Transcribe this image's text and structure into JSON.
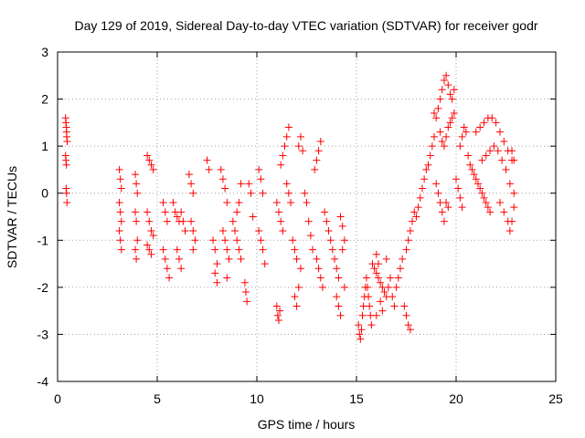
{
  "chart_data": {
    "type": "scatter",
    "title": "Day 129 of 2019, Sidereal Day-to-day VTEC variation (SDTVAR) for receiver godr",
    "xlabel": "GPS time / hours",
    "ylabel": "SDTVAR / TECUs",
    "xlim": [
      0,
      25
    ],
    "ylim": [
      -4,
      3
    ],
    "xticks": [
      0,
      5,
      10,
      15,
      20,
      25
    ],
    "yticks": [
      -4,
      -3,
      -2,
      -1,
      0,
      1,
      2,
      3
    ],
    "grid": true,
    "marker": "+",
    "color": "#ff0000",
    "series": [
      {
        "name": "SDTVAR",
        "points": [
          [
            0.4,
            1.6
          ],
          [
            0.42,
            1.5
          ],
          [
            0.44,
            1.4
          ],
          [
            0.45,
            1.3
          ],
          [
            0.46,
            1.2
          ],
          [
            0.48,
            1.1
          ],
          [
            0.4,
            0.8
          ],
          [
            0.42,
            0.7
          ],
          [
            0.44,
            0.6
          ],
          [
            0.43,
            0.1
          ],
          [
            0.45,
            0.0
          ],
          [
            0.47,
            -0.2
          ],
          [
            3.1,
            0.5
          ],
          [
            3.15,
            0.3
          ],
          [
            3.2,
            0.1
          ],
          [
            3.1,
            -0.2
          ],
          [
            3.15,
            -0.4
          ],
          [
            3.2,
            -0.6
          ],
          [
            3.1,
            -0.8
          ],
          [
            3.15,
            -1.0
          ],
          [
            3.2,
            -1.2
          ],
          [
            3.9,
            0.4
          ],
          [
            3.95,
            0.2
          ],
          [
            4.0,
            0.0
          ],
          [
            3.9,
            -0.4
          ],
          [
            3.95,
            -0.6
          ],
          [
            4.0,
            -1.0
          ],
          [
            3.9,
            -1.2
          ],
          [
            3.95,
            -1.4
          ],
          [
            4.5,
            0.8
          ],
          [
            4.6,
            0.7
          ],
          [
            4.7,
            0.6
          ],
          [
            4.8,
            0.5
          ],
          [
            4.5,
            -0.4
          ],
          [
            4.6,
            -0.6
          ],
          [
            4.7,
            -0.8
          ],
          [
            4.5,
            -1.1
          ],
          [
            4.6,
            -1.2
          ],
          [
            4.7,
            -1.3
          ],
          [
            4.8,
            -0.9
          ],
          [
            5.3,
            -0.2
          ],
          [
            5.4,
            -0.4
          ],
          [
            5.5,
            -0.6
          ],
          [
            5.3,
            -1.2
          ],
          [
            5.4,
            -1.4
          ],
          [
            5.5,
            -1.6
          ],
          [
            5.6,
            -1.8
          ],
          [
            5.8,
            -0.2
          ],
          [
            5.9,
            -0.4
          ],
          [
            6.0,
            -0.5
          ],
          [
            6.1,
            -0.6
          ],
          [
            6.2,
            -0.4
          ],
          [
            6.3,
            -0.6
          ],
          [
            6.4,
            -0.8
          ],
          [
            6.0,
            -1.2
          ],
          [
            6.1,
            -1.4
          ],
          [
            6.2,
            -1.6
          ],
          [
            6.6,
            0.4
          ],
          [
            6.7,
            0.2
          ],
          [
            6.8,
            0.0
          ],
          [
            6.7,
            -0.6
          ],
          [
            6.8,
            -0.8
          ],
          [
            6.9,
            -1.0
          ],
          [
            6.8,
            -1.2
          ],
          [
            7.5,
            0.7
          ],
          [
            7.6,
            0.5
          ],
          [
            7.8,
            -1.0
          ],
          [
            7.9,
            -1.2
          ],
          [
            8.0,
            -1.5
          ],
          [
            7.9,
            -1.7
          ],
          [
            8.0,
            -1.9
          ],
          [
            8.2,
            0.5
          ],
          [
            8.3,
            0.3
          ],
          [
            8.4,
            0.1
          ],
          [
            8.5,
            -0.2
          ],
          [
            8.3,
            -0.8
          ],
          [
            8.4,
            -1.0
          ],
          [
            8.5,
            -1.2
          ],
          [
            8.6,
            -1.4
          ],
          [
            8.5,
            -1.8
          ],
          [
            8.8,
            -0.6
          ],
          [
            8.9,
            -0.8
          ],
          [
            9.0,
            -0.4
          ],
          [
            9.1,
            -0.2
          ],
          [
            9.2,
            0.2
          ],
          [
            9.0,
            -1.0
          ],
          [
            9.1,
            -1.2
          ],
          [
            9.2,
            -1.4
          ],
          [
            9.4,
            -1.9
          ],
          [
            9.45,
            -2.1
          ],
          [
            9.5,
            -2.3
          ],
          [
            9.6,
            0.2
          ],
          [
            9.7,
            0.0
          ],
          [
            9.8,
            -0.5
          ],
          [
            10.1,
            0.5
          ],
          [
            10.2,
            0.3
          ],
          [
            10.3,
            0.0
          ],
          [
            10.1,
            -0.8
          ],
          [
            10.2,
            -1.0
          ],
          [
            10.3,
            -1.2
          ],
          [
            10.4,
            -1.5
          ],
          [
            11.0,
            -2.4
          ],
          [
            11.05,
            -2.6
          ],
          [
            11.1,
            -2.7
          ],
          [
            11.15,
            -2.5
          ],
          [
            11.0,
            -0.2
          ],
          [
            11.1,
            -0.4
          ],
          [
            11.2,
            -0.6
          ],
          [
            11.3,
            -0.8
          ],
          [
            11.2,
            0.6
          ],
          [
            11.3,
            0.8
          ],
          [
            11.4,
            1.0
          ],
          [
            11.5,
            1.2
          ],
          [
            11.6,
            1.4
          ],
          [
            11.5,
            0.2
          ],
          [
            11.6,
            0.0
          ],
          [
            11.7,
            -0.2
          ],
          [
            11.8,
            -1.0
          ],
          [
            11.9,
            -1.2
          ],
          [
            12.0,
            -1.4
          ],
          [
            11.9,
            -2.2
          ],
          [
            12.0,
            -2.4
          ],
          [
            12.1,
            -2.0
          ],
          [
            12.2,
            -1.6
          ],
          [
            12.1,
            1.0
          ],
          [
            12.2,
            1.2
          ],
          [
            12.3,
            0.9
          ],
          [
            12.4,
            0.0
          ],
          [
            12.5,
            -0.2
          ],
          [
            12.6,
            -0.6
          ],
          [
            12.7,
            -0.9
          ],
          [
            12.8,
            -1.2
          ],
          [
            12.9,
            0.5
          ],
          [
            13.0,
            0.7
          ],
          [
            13.1,
            0.9
          ],
          [
            13.2,
            1.1
          ],
          [
            13.0,
            -1.4
          ],
          [
            13.1,
            -1.6
          ],
          [
            13.2,
            -1.8
          ],
          [
            13.3,
            -2.0
          ],
          [
            13.4,
            -0.4
          ],
          [
            13.5,
            -0.6
          ],
          [
            13.6,
            -0.8
          ],
          [
            13.7,
            -1.0
          ],
          [
            13.8,
            -1.2
          ],
          [
            13.9,
            -1.4
          ],
          [
            14.0,
            -1.6
          ],
          [
            14.1,
            -1.8
          ],
          [
            14.0,
            -2.2
          ],
          [
            14.1,
            -2.4
          ],
          [
            14.2,
            -2.6
          ],
          [
            14.2,
            -0.5
          ],
          [
            14.3,
            -0.7
          ],
          [
            14.4,
            -1.0
          ],
          [
            14.3,
            -1.2
          ],
          [
            14.4,
            -2.0
          ],
          [
            15.1,
            -2.8
          ],
          [
            15.15,
            -3.0
          ],
          [
            15.2,
            -3.1
          ],
          [
            15.25,
            -2.9
          ],
          [
            15.3,
            -2.6
          ],
          [
            15.35,
            -2.4
          ],
          [
            15.4,
            -2.2
          ],
          [
            15.45,
            -2.0
          ],
          [
            15.5,
            -1.8
          ],
          [
            15.55,
            -2.0
          ],
          [
            15.6,
            -2.2
          ],
          [
            15.65,
            -2.4
          ],
          [
            15.7,
            -2.6
          ],
          [
            15.75,
            -2.8
          ],
          [
            15.8,
            -1.5
          ],
          [
            15.9,
            -1.6
          ],
          [
            16.0,
            -1.7
          ],
          [
            16.1,
            -1.8
          ],
          [
            16.2,
            -1.9
          ],
          [
            16.3,
            -2.0
          ],
          [
            16.4,
            -2.1
          ],
          [
            16.5,
            -2.2
          ],
          [
            16.6,
            -2.0
          ],
          [
            16.7,
            -1.8
          ],
          [
            16.8,
            -2.2
          ],
          [
            16.9,
            -2.4
          ],
          [
            17.0,
            -2.0
          ],
          [
            17.1,
            -1.8
          ],
          [
            17.2,
            -1.6
          ],
          [
            17.3,
            -1.4
          ],
          [
            16.0,
            -1.3
          ],
          [
            16.1,
            -1.5
          ],
          [
            16.2,
            -2.3
          ],
          [
            16.3,
            -2.5
          ],
          [
            16.0,
            -2.6
          ],
          [
            16.5,
            -1.4
          ],
          [
            17.4,
            -2.4
          ],
          [
            17.5,
            -2.6
          ],
          [
            17.6,
            -2.8
          ],
          [
            17.7,
            -2.9
          ],
          [
            17.5,
            -1.2
          ],
          [
            17.6,
            -1.0
          ],
          [
            17.7,
            -0.8
          ],
          [
            17.8,
            -0.6
          ],
          [
            17.9,
            -0.4
          ],
          [
            18.0,
            -0.5
          ],
          [
            18.1,
            -0.3
          ],
          [
            18.2,
            -0.1
          ],
          [
            18.3,
            0.1
          ],
          [
            18.4,
            0.3
          ],
          [
            18.5,
            0.5
          ],
          [
            18.6,
            0.6
          ],
          [
            18.7,
            0.8
          ],
          [
            18.8,
            1.0
          ],
          [
            18.9,
            1.2
          ],
          [
            18.9,
            1.7
          ],
          [
            19.0,
            1.6
          ],
          [
            19.1,
            1.8
          ],
          [
            19.2,
            2.0
          ],
          [
            19.3,
            2.2
          ],
          [
            19.4,
            2.4
          ],
          [
            19.5,
            2.5
          ],
          [
            19.6,
            2.3
          ],
          [
            19.7,
            2.1
          ],
          [
            19.8,
            2.0
          ],
          [
            19.9,
            2.2
          ],
          [
            19.2,
            1.3
          ],
          [
            19.3,
            1.1
          ],
          [
            19.4,
            1.0
          ],
          [
            19.5,
            1.2
          ],
          [
            19.6,
            1.4
          ],
          [
            19.7,
            1.5
          ],
          [
            19.8,
            1.6
          ],
          [
            19.9,
            1.7
          ],
          [
            19.0,
            0.2
          ],
          [
            19.1,
            0.0
          ],
          [
            19.2,
            -0.2
          ],
          [
            19.3,
            -0.4
          ],
          [
            19.4,
            -0.6
          ],
          [
            19.5,
            -0.2
          ],
          [
            19.6,
            -0.3
          ],
          [
            20.0,
            0.3
          ],
          [
            20.1,
            0.1
          ],
          [
            20.2,
            -0.1
          ],
          [
            20.3,
            -0.3
          ],
          [
            20.2,
            1.0
          ],
          [
            20.3,
            1.2
          ],
          [
            20.4,
            1.4
          ],
          [
            20.5,
            1.3
          ],
          [
            20.6,
            0.8
          ],
          [
            20.7,
            0.6
          ],
          [
            20.8,
            0.5
          ],
          [
            20.9,
            0.4
          ],
          [
            21.0,
            0.3
          ],
          [
            21.1,
            0.2
          ],
          [
            21.2,
            0.1
          ],
          [
            21.3,
            0.0
          ],
          [
            21.4,
            -0.1
          ],
          [
            21.5,
            -0.2
          ],
          [
            21.6,
            -0.3
          ],
          [
            21.7,
            -0.4
          ],
          [
            21.0,
            1.3
          ],
          [
            21.2,
            1.4
          ],
          [
            21.4,
            1.5
          ],
          [
            21.6,
            1.6
          ],
          [
            21.8,
            1.6
          ],
          [
            22.0,
            1.5
          ],
          [
            22.2,
            1.3
          ],
          [
            22.4,
            1.1
          ],
          [
            22.6,
            0.9
          ],
          [
            22.8,
            0.7
          ],
          [
            21.3,
            0.7
          ],
          [
            21.5,
            0.8
          ],
          [
            21.7,
            0.9
          ],
          [
            21.9,
            1.0
          ],
          [
            22.1,
            0.9
          ],
          [
            22.3,
            0.7
          ],
          [
            22.5,
            0.5
          ],
          [
            22.7,
            0.2
          ],
          [
            22.9,
            0.0
          ],
          [
            22.2,
            -0.2
          ],
          [
            22.4,
            -0.4
          ],
          [
            22.6,
            -0.6
          ],
          [
            22.7,
            -0.8
          ],
          [
            22.8,
            -0.6
          ],
          [
            22.9,
            -0.3
          ],
          [
            22.8,
            0.9
          ],
          [
            22.9,
            0.7
          ]
        ]
      }
    ]
  }
}
